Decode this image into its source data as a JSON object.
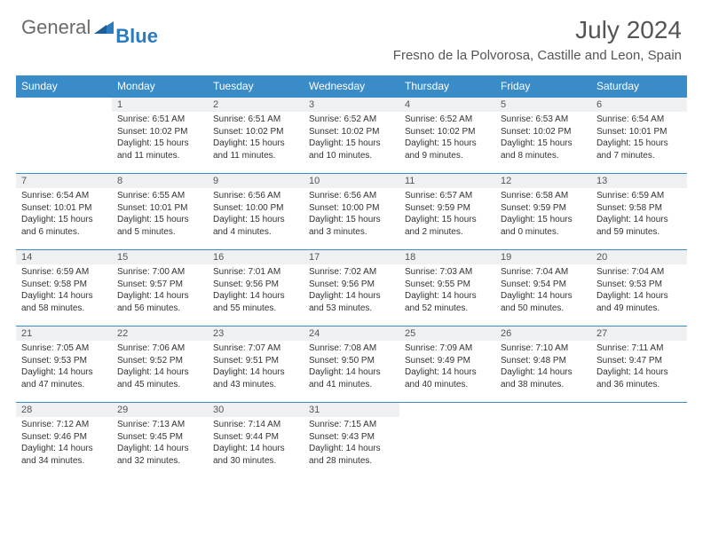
{
  "brand": {
    "part1": "General",
    "part2": "Blue"
  },
  "title": "July 2024",
  "location": "Fresno de la Polvorosa, Castille and Leon, Spain",
  "colors": {
    "header_bg": "#3a8cc9",
    "header_text": "#ffffff",
    "daynum_bg": "#eef0f2",
    "border": "#3a8cc9",
    "logo_gray": "#6a6a6a",
    "logo_blue": "#2b7bbf"
  },
  "weekdays": [
    "Sunday",
    "Monday",
    "Tuesday",
    "Wednesday",
    "Thursday",
    "Friday",
    "Saturday"
  ],
  "weeks": [
    [
      {
        "n": "",
        "sr": "",
        "ss": "",
        "dl": "",
        "empty": true
      },
      {
        "n": "1",
        "sr": "Sunrise: 6:51 AM",
        "ss": "Sunset: 10:02 PM",
        "dl": "Daylight: 15 hours and 11 minutes."
      },
      {
        "n": "2",
        "sr": "Sunrise: 6:51 AM",
        "ss": "Sunset: 10:02 PM",
        "dl": "Daylight: 15 hours and 11 minutes."
      },
      {
        "n": "3",
        "sr": "Sunrise: 6:52 AM",
        "ss": "Sunset: 10:02 PM",
        "dl": "Daylight: 15 hours and 10 minutes."
      },
      {
        "n": "4",
        "sr": "Sunrise: 6:52 AM",
        "ss": "Sunset: 10:02 PM",
        "dl": "Daylight: 15 hours and 9 minutes."
      },
      {
        "n": "5",
        "sr": "Sunrise: 6:53 AM",
        "ss": "Sunset: 10:02 PM",
        "dl": "Daylight: 15 hours and 8 minutes."
      },
      {
        "n": "6",
        "sr": "Sunrise: 6:54 AM",
        "ss": "Sunset: 10:01 PM",
        "dl": "Daylight: 15 hours and 7 minutes."
      }
    ],
    [
      {
        "n": "7",
        "sr": "Sunrise: 6:54 AM",
        "ss": "Sunset: 10:01 PM",
        "dl": "Daylight: 15 hours and 6 minutes."
      },
      {
        "n": "8",
        "sr": "Sunrise: 6:55 AM",
        "ss": "Sunset: 10:01 PM",
        "dl": "Daylight: 15 hours and 5 minutes."
      },
      {
        "n": "9",
        "sr": "Sunrise: 6:56 AM",
        "ss": "Sunset: 10:00 PM",
        "dl": "Daylight: 15 hours and 4 minutes."
      },
      {
        "n": "10",
        "sr": "Sunrise: 6:56 AM",
        "ss": "Sunset: 10:00 PM",
        "dl": "Daylight: 15 hours and 3 minutes."
      },
      {
        "n": "11",
        "sr": "Sunrise: 6:57 AM",
        "ss": "Sunset: 9:59 PM",
        "dl": "Daylight: 15 hours and 2 minutes."
      },
      {
        "n": "12",
        "sr": "Sunrise: 6:58 AM",
        "ss": "Sunset: 9:59 PM",
        "dl": "Daylight: 15 hours and 0 minutes."
      },
      {
        "n": "13",
        "sr": "Sunrise: 6:59 AM",
        "ss": "Sunset: 9:58 PM",
        "dl": "Daylight: 14 hours and 59 minutes."
      }
    ],
    [
      {
        "n": "14",
        "sr": "Sunrise: 6:59 AM",
        "ss": "Sunset: 9:58 PM",
        "dl": "Daylight: 14 hours and 58 minutes."
      },
      {
        "n": "15",
        "sr": "Sunrise: 7:00 AM",
        "ss": "Sunset: 9:57 PM",
        "dl": "Daylight: 14 hours and 56 minutes."
      },
      {
        "n": "16",
        "sr": "Sunrise: 7:01 AM",
        "ss": "Sunset: 9:56 PM",
        "dl": "Daylight: 14 hours and 55 minutes."
      },
      {
        "n": "17",
        "sr": "Sunrise: 7:02 AM",
        "ss": "Sunset: 9:56 PM",
        "dl": "Daylight: 14 hours and 53 minutes."
      },
      {
        "n": "18",
        "sr": "Sunrise: 7:03 AM",
        "ss": "Sunset: 9:55 PM",
        "dl": "Daylight: 14 hours and 52 minutes."
      },
      {
        "n": "19",
        "sr": "Sunrise: 7:04 AM",
        "ss": "Sunset: 9:54 PM",
        "dl": "Daylight: 14 hours and 50 minutes."
      },
      {
        "n": "20",
        "sr": "Sunrise: 7:04 AM",
        "ss": "Sunset: 9:53 PM",
        "dl": "Daylight: 14 hours and 49 minutes."
      }
    ],
    [
      {
        "n": "21",
        "sr": "Sunrise: 7:05 AM",
        "ss": "Sunset: 9:53 PM",
        "dl": "Daylight: 14 hours and 47 minutes."
      },
      {
        "n": "22",
        "sr": "Sunrise: 7:06 AM",
        "ss": "Sunset: 9:52 PM",
        "dl": "Daylight: 14 hours and 45 minutes."
      },
      {
        "n": "23",
        "sr": "Sunrise: 7:07 AM",
        "ss": "Sunset: 9:51 PM",
        "dl": "Daylight: 14 hours and 43 minutes."
      },
      {
        "n": "24",
        "sr": "Sunrise: 7:08 AM",
        "ss": "Sunset: 9:50 PM",
        "dl": "Daylight: 14 hours and 41 minutes."
      },
      {
        "n": "25",
        "sr": "Sunrise: 7:09 AM",
        "ss": "Sunset: 9:49 PM",
        "dl": "Daylight: 14 hours and 40 minutes."
      },
      {
        "n": "26",
        "sr": "Sunrise: 7:10 AM",
        "ss": "Sunset: 9:48 PM",
        "dl": "Daylight: 14 hours and 38 minutes."
      },
      {
        "n": "27",
        "sr": "Sunrise: 7:11 AM",
        "ss": "Sunset: 9:47 PM",
        "dl": "Daylight: 14 hours and 36 minutes."
      }
    ],
    [
      {
        "n": "28",
        "sr": "Sunrise: 7:12 AM",
        "ss": "Sunset: 9:46 PM",
        "dl": "Daylight: 14 hours and 34 minutes."
      },
      {
        "n": "29",
        "sr": "Sunrise: 7:13 AM",
        "ss": "Sunset: 9:45 PM",
        "dl": "Daylight: 14 hours and 32 minutes."
      },
      {
        "n": "30",
        "sr": "Sunrise: 7:14 AM",
        "ss": "Sunset: 9:44 PM",
        "dl": "Daylight: 14 hours and 30 minutes."
      },
      {
        "n": "31",
        "sr": "Sunrise: 7:15 AM",
        "ss": "Sunset: 9:43 PM",
        "dl": "Daylight: 14 hours and 28 minutes."
      },
      {
        "n": "",
        "sr": "",
        "ss": "",
        "dl": "",
        "empty": true
      },
      {
        "n": "",
        "sr": "",
        "ss": "",
        "dl": "",
        "empty": true
      },
      {
        "n": "",
        "sr": "",
        "ss": "",
        "dl": "",
        "empty": true
      }
    ]
  ]
}
